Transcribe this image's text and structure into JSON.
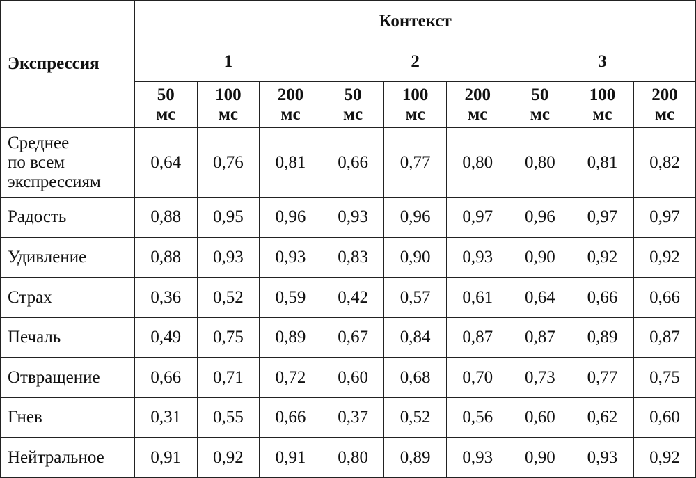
{
  "table": {
    "corner": "Экспрессия",
    "group": "Контекст",
    "contexts": [
      "1",
      "2",
      "3"
    ],
    "durations": [
      [
        "50",
        "мс"
      ],
      [
        "100",
        "мс"
      ],
      [
        "200",
        "мс"
      ],
      [
        "50",
        "мс"
      ],
      [
        "100",
        "мс"
      ],
      [
        "200",
        "мс"
      ],
      [
        "50",
        "мс"
      ],
      [
        "100",
        "мс"
      ],
      [
        "200",
        "мс"
      ]
    ],
    "rows": [
      {
        "label": [
          "Среднее",
          "по всем",
          "экспрессиям"
        ],
        "values": [
          "0,64",
          "0,76",
          "0,81",
          "0,66",
          "0,77",
          "0,80",
          "0,80",
          "0,81",
          "0,82"
        ]
      },
      {
        "label": [
          "Радость"
        ],
        "values": [
          "0,88",
          "0,95",
          "0,96",
          "0,93",
          "0,96",
          "0,97",
          "0,96",
          "0,97",
          "0,97"
        ]
      },
      {
        "label": [
          "Удивление"
        ],
        "values": [
          "0,88",
          "0,93",
          "0,93",
          "0,83",
          "0,90",
          "0,93",
          "0,90",
          "0,92",
          "0,92"
        ]
      },
      {
        "label": [
          "Страх"
        ],
        "values": [
          "0,36",
          "0,52",
          "0,59",
          "0,42",
          "0,57",
          "0,61",
          "0,64",
          "0,66",
          "0,66"
        ]
      },
      {
        "label": [
          "Печаль"
        ],
        "values": [
          "0,49",
          "0,75",
          "0,89",
          "0,67",
          "0,84",
          "0,87",
          "0,87",
          "0,89",
          "0,87"
        ]
      },
      {
        "label": [
          "Отвращение"
        ],
        "values": [
          "0,66",
          "0,71",
          "0,72",
          "0,60",
          "0,68",
          "0,70",
          "0,73",
          "0,77",
          "0,75"
        ]
      },
      {
        "label": [
          "Гнев"
        ],
        "values": [
          "0,31",
          "0,55",
          "0,66",
          "0,37",
          "0,52",
          "0,56",
          "0,60",
          "0,62",
          "0,60"
        ]
      },
      {
        "label": [
          "Нейтральное"
        ],
        "values": [
          "0,91",
          "0,92",
          "0,91",
          "0,80",
          "0,89",
          "0,93",
          "0,90",
          "0,93",
          "0,92"
        ]
      }
    ]
  }
}
